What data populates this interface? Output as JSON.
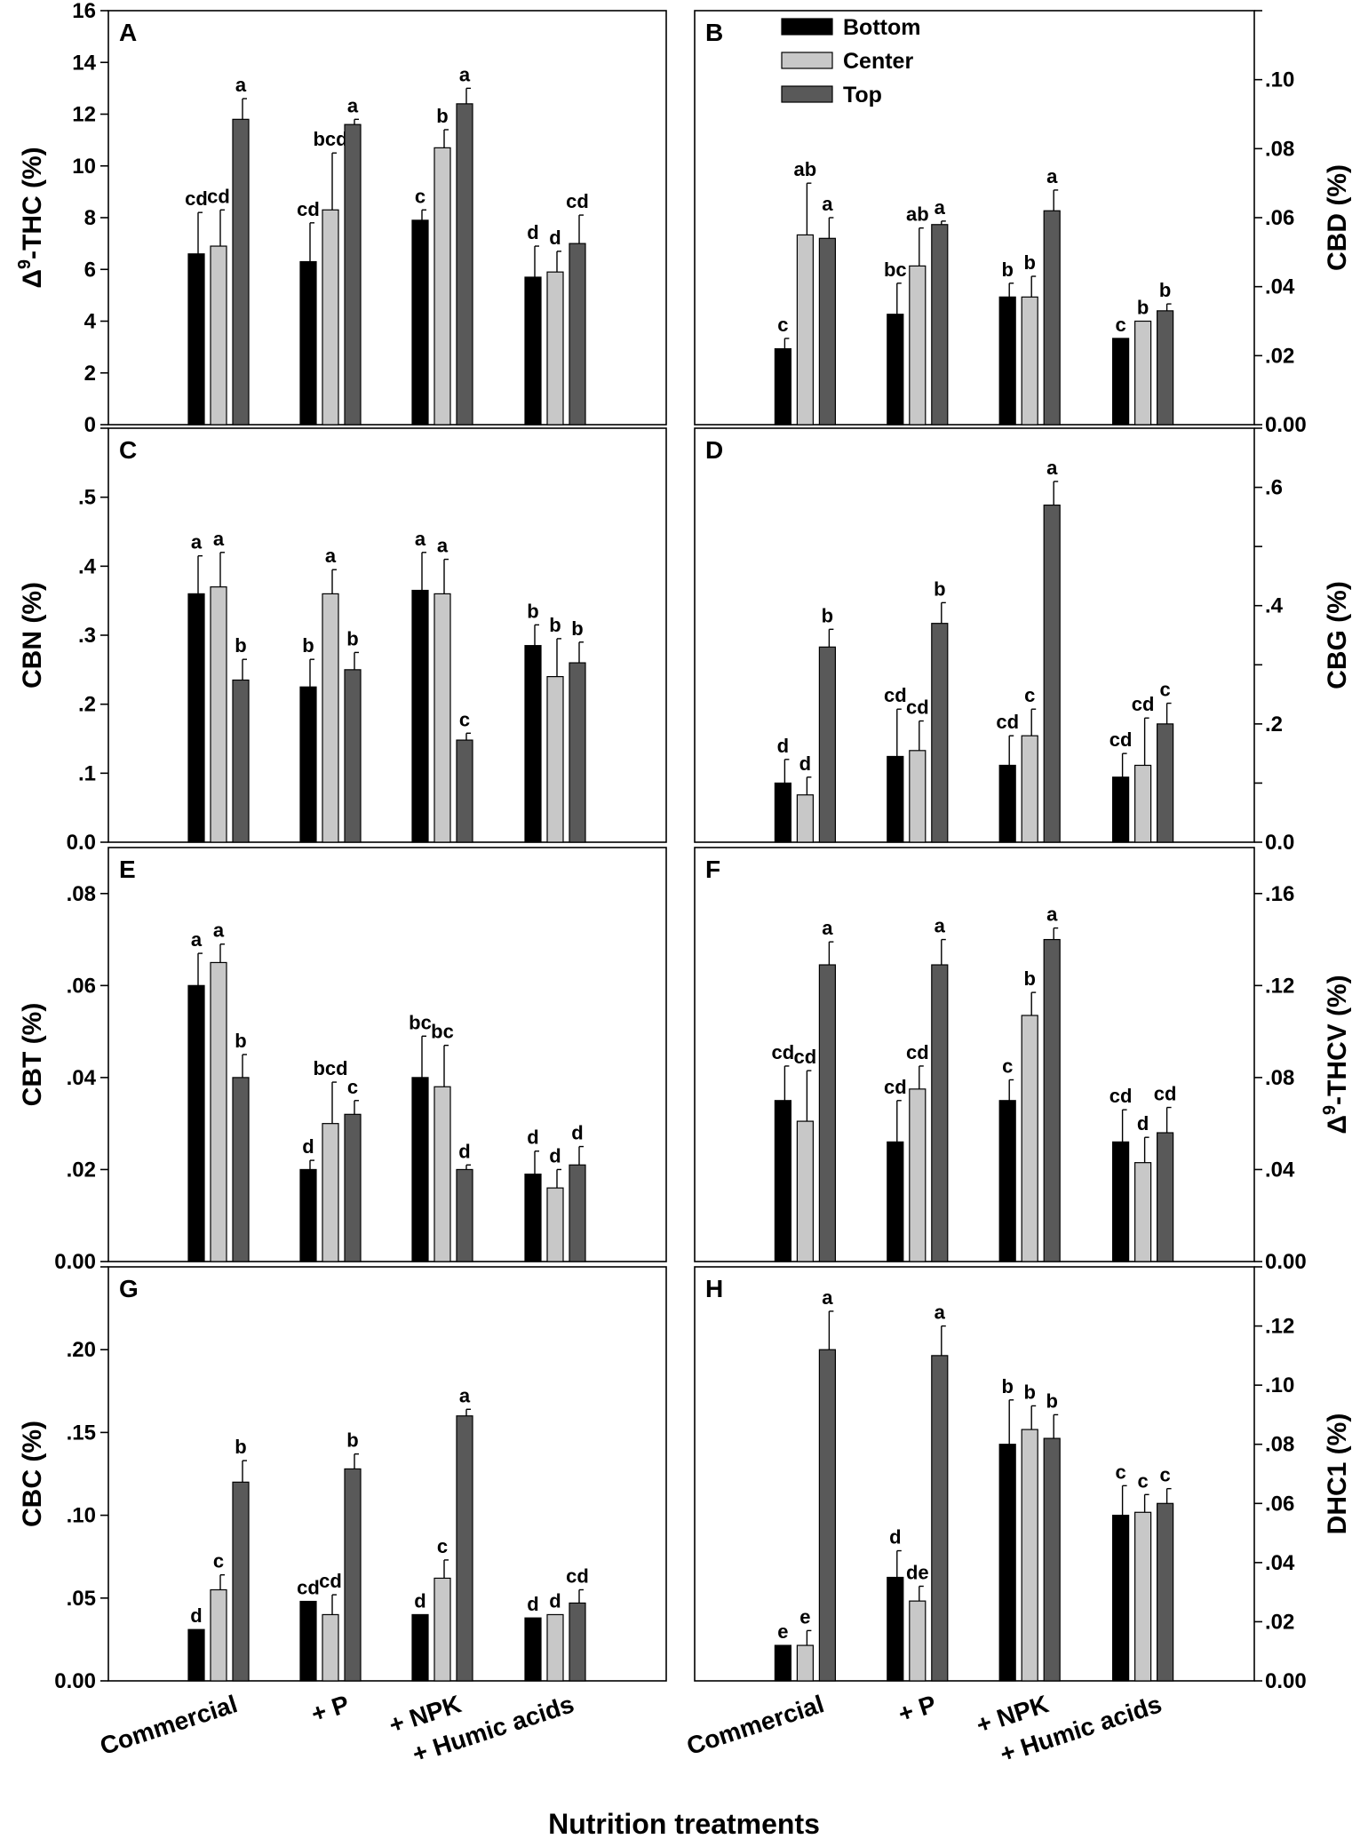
{
  "figure": {
    "xlabel": "Nutrition treatments",
    "legend": [
      {
        "name": "Bottom",
        "color": "#000000"
      },
      {
        "name": "Center",
        "color": "#c8c8c8"
      },
      {
        "name": "Top",
        "color": "#595959"
      }
    ]
  },
  "chart_data": [
    {
      "panel": "A",
      "type": "bar",
      "side": "left",
      "ylabel_pre": "Δ",
      "ylabel_sup": "9",
      "ylabel_post": "-THC (%)",
      "ylim": [
        0,
        16
      ],
      "ticks": [
        0,
        2,
        4,
        6,
        8,
        10,
        12,
        14,
        16
      ],
      "tick_labels": [
        "0",
        "2",
        "4",
        "6",
        "8",
        "10",
        "12",
        "14",
        "16"
      ],
      "categories": [
        "Commercial",
        "+ P",
        "+ NPK",
        "+ Humic acids"
      ],
      "series": [
        {
          "name": "Bottom",
          "values": [
            6.6,
            6.3,
            7.9,
            5.7
          ],
          "errors": [
            1.6,
            1.5,
            0.4,
            1.2
          ],
          "letters": [
            "cd",
            "cd",
            "c",
            "d"
          ]
        },
        {
          "name": "Center",
          "values": [
            6.9,
            8.3,
            10.7,
            5.9
          ],
          "errors": [
            1.4,
            2.2,
            0.7,
            0.8
          ],
          "letters": [
            "cd",
            "bcd",
            "b",
            "d"
          ]
        },
        {
          "name": "Top",
          "values": [
            11.8,
            11.6,
            12.4,
            7.0
          ],
          "errors": [
            0.8,
            0.2,
            0.6,
            1.1
          ],
          "letters": [
            "a",
            "a",
            "a",
            "cd"
          ]
        }
      ]
    },
    {
      "panel": "B",
      "type": "bar",
      "side": "right",
      "ylabel": "CBD (%)",
      "ylim": [
        0,
        0.12
      ],
      "ticks": [
        0,
        0.02,
        0.04,
        0.06,
        0.08,
        0.1,
        0.12
      ],
      "tick_labels": [
        "0.00",
        ".02",
        ".04",
        ".06",
        ".08",
        ".10",
        ""
      ],
      "categories": [
        "Commercial",
        "+ P",
        "+ NPK",
        "+ Humic acids"
      ],
      "series": [
        {
          "name": "Bottom",
          "values": [
            0.022,
            0.032,
            0.037,
            0.025
          ],
          "errors": [
            0.003,
            0.009,
            0.004,
            0.0
          ],
          "letters": [
            "c",
            "bc",
            "b",
            "c"
          ]
        },
        {
          "name": "Center",
          "values": [
            0.055,
            0.046,
            0.037,
            0.03
          ],
          "errors": [
            0.015,
            0.011,
            0.006,
            0.0
          ],
          "letters": [
            "ab",
            "ab",
            "b",
            "b"
          ]
        },
        {
          "name": "Top",
          "values": [
            0.054,
            0.058,
            0.062,
            0.033
          ],
          "errors": [
            0.006,
            0.001,
            0.006,
            0.002
          ],
          "letters": [
            "a",
            "a",
            "a",
            "b"
          ]
        }
      ]
    },
    {
      "panel": "C",
      "type": "bar",
      "side": "left",
      "ylabel": "CBN (%)",
      "ylim": [
        0,
        0.6
      ],
      "ticks": [
        0,
        0.1,
        0.2,
        0.3,
        0.4,
        0.5,
        0.6
      ],
      "tick_labels": [
        "0.0",
        ".1",
        ".2",
        ".3",
        ".4",
        ".5",
        ""
      ],
      "categories": [
        "Commercial",
        "+ P",
        "+ NPK",
        "+ Humic acids"
      ],
      "series": [
        {
          "name": "Bottom",
          "values": [
            0.36,
            0.225,
            0.365,
            0.285
          ],
          "errors": [
            0.055,
            0.04,
            0.055,
            0.03
          ],
          "letters": [
            "a",
            "b",
            "a",
            "b"
          ]
        },
        {
          "name": "Center",
          "values": [
            0.37,
            0.36,
            0.36,
            0.24
          ],
          "errors": [
            0.05,
            0.035,
            0.05,
            0.055
          ],
          "letters": [
            "a",
            "a",
            "a",
            "b"
          ]
        },
        {
          "name": "Top",
          "values": [
            0.235,
            0.25,
            0.148,
            0.26
          ],
          "errors": [
            0.03,
            0.025,
            0.01,
            0.03
          ],
          "letters": [
            "b",
            "b",
            "c",
            "b"
          ]
        }
      ]
    },
    {
      "panel": "D",
      "type": "bar",
      "side": "right",
      "ylabel": "CBG (%)",
      "ylim": [
        0,
        0.7
      ],
      "ticks": [
        0,
        0.1,
        0.2,
        0.3,
        0.4,
        0.5,
        0.6,
        0.7
      ],
      "tick_labels": [
        "0.0",
        "",
        ".2",
        "",
        ".4",
        "",
        ".6",
        ""
      ],
      "categories": [
        "Commercial",
        "+ P",
        "+ NPK",
        "+ Humic acids"
      ],
      "series": [
        {
          "name": "Bottom",
          "values": [
            0.1,
            0.145,
            0.13,
            0.11
          ],
          "errors": [
            0.04,
            0.08,
            0.05,
            0.04
          ],
          "letters": [
            "d",
            "cd",
            "cd",
            "cd"
          ]
        },
        {
          "name": "Center",
          "values": [
            0.08,
            0.155,
            0.18,
            0.13
          ],
          "errors": [
            0.03,
            0.05,
            0.045,
            0.08
          ],
          "letters": [
            "d",
            "cd",
            "c",
            "cd"
          ]
        },
        {
          "name": "Top",
          "values": [
            0.33,
            0.37,
            0.57,
            0.2
          ],
          "errors": [
            0.03,
            0.035,
            0.04,
            0.035
          ],
          "letters": [
            "b",
            "b",
            "a",
            "c"
          ]
        }
      ]
    },
    {
      "panel": "E",
      "type": "bar",
      "side": "left",
      "ylabel": "CBT (%)",
      "ylim": [
        0,
        0.09
      ],
      "ticks": [
        0,
        0.02,
        0.04,
        0.06,
        0.08
      ],
      "tick_labels": [
        "0.00",
        ".02",
        ".04",
        ".06",
        ".08"
      ],
      "categories": [
        "Commercial",
        "+ P",
        "+ NPK",
        "+ Humic acids"
      ],
      "series": [
        {
          "name": "Bottom",
          "values": [
            0.06,
            0.02,
            0.04,
            0.019
          ],
          "errors": [
            0.007,
            0.002,
            0.009,
            0.005
          ],
          "letters": [
            "a",
            "d",
            "bc",
            "d"
          ]
        },
        {
          "name": "Center",
          "values": [
            0.065,
            0.03,
            0.038,
            0.016
          ],
          "errors": [
            0.004,
            0.009,
            0.009,
            0.004
          ],
          "letters": [
            "a",
            "bcd",
            "bc",
            "d"
          ]
        },
        {
          "name": "Top",
          "values": [
            0.04,
            0.032,
            0.02,
            0.021
          ],
          "errors": [
            0.005,
            0.003,
            0.001,
            0.004
          ],
          "letters": [
            "b",
            "c",
            "d",
            "d"
          ]
        }
      ]
    },
    {
      "panel": "F",
      "type": "bar",
      "side": "right",
      "ylabel_pre": "Δ",
      "ylabel_sup": "9",
      "ylabel_post": "-THCV (%)",
      "ylim": [
        0,
        0.18
      ],
      "ticks": [
        0,
        0.04,
        0.08,
        0.12,
        0.16
      ],
      "tick_labels": [
        "0.00",
        ".04",
        ".08",
        ".12",
        ".16"
      ],
      "categories": [
        "Commercial",
        "+ P",
        "+ NPK",
        "+ Humic acids"
      ],
      "series": [
        {
          "name": "Bottom",
          "values": [
            0.07,
            0.052,
            0.07,
            0.052
          ],
          "errors": [
            0.015,
            0.018,
            0.009,
            0.014
          ],
          "letters": [
            "cd",
            "cd",
            "c",
            "cd"
          ]
        },
        {
          "name": "Center",
          "values": [
            0.061,
            0.075,
            0.107,
            0.043
          ],
          "errors": [
            0.022,
            0.01,
            0.01,
            0.011
          ],
          "letters": [
            "cd",
            "cd",
            "b",
            "d"
          ]
        },
        {
          "name": "Top",
          "values": [
            0.129,
            0.129,
            0.14,
            0.056
          ],
          "errors": [
            0.01,
            0.011,
            0.005,
            0.011
          ],
          "letters": [
            "a",
            "a",
            "a",
            "cd"
          ]
        }
      ]
    },
    {
      "panel": "G",
      "type": "bar",
      "side": "left",
      "ylabel": "CBC (%)",
      "ylim": [
        0,
        0.25
      ],
      "ticks": [
        0,
        0.05,
        0.1,
        0.15,
        0.2,
        0.25
      ],
      "tick_labels": [
        "0.00",
        ".05",
        ".10",
        ".15",
        ".20",
        ""
      ],
      "categories": [
        "Commercial",
        "+ P",
        "+ NPK",
        "+ Humic acids"
      ],
      "series": [
        {
          "name": "Bottom",
          "values": [
            0.031,
            0.048,
            0.04,
            0.038
          ],
          "errors": [
            0.0,
            0.0,
            0.0,
            0.0
          ],
          "letters": [
            "d",
            "cd",
            "d",
            "d"
          ]
        },
        {
          "name": "Center",
          "values": [
            0.055,
            0.04,
            0.062,
            0.04
          ],
          "errors": [
            0.009,
            0.012,
            0.011,
            0.0
          ],
          "letters": [
            "c",
            "cd",
            "c",
            "d"
          ]
        },
        {
          "name": "Top",
          "values": [
            0.12,
            0.128,
            0.16,
            0.047
          ],
          "errors": [
            0.013,
            0.009,
            0.004,
            0.008
          ],
          "letters": [
            "b",
            "b",
            "a",
            "cd"
          ]
        }
      ]
    },
    {
      "panel": "H",
      "type": "bar",
      "side": "right",
      "ylabel": "DHC1 (%)",
      "ylim": [
        0,
        0.14
      ],
      "ticks": [
        0,
        0.02,
        0.04,
        0.06,
        0.08,
        0.1,
        0.12,
        0.14
      ],
      "tick_labels": [
        "0.00",
        ".02",
        ".04",
        ".06",
        ".08",
        ".10",
        ".12",
        ""
      ],
      "categories": [
        "Commercial",
        "+ P",
        "+ NPK",
        "+ Humic acids"
      ],
      "series": [
        {
          "name": "Bottom",
          "values": [
            0.012,
            0.035,
            0.08,
            0.056
          ],
          "errors": [
            0.0,
            0.009,
            0.015,
            0.01
          ],
          "letters": [
            "e",
            "d",
            "b",
            "c"
          ]
        },
        {
          "name": "Center",
          "values": [
            0.012,
            0.027,
            0.085,
            0.057
          ],
          "errors": [
            0.005,
            0.005,
            0.008,
            0.006
          ],
          "letters": [
            "e",
            "de",
            "b",
            "c"
          ]
        },
        {
          "name": "Top",
          "values": [
            0.112,
            0.11,
            0.082,
            0.06
          ],
          "errors": [
            0.013,
            0.01,
            0.008,
            0.005
          ],
          "letters": [
            "a",
            "a",
            "b",
            "c"
          ]
        }
      ]
    }
  ]
}
